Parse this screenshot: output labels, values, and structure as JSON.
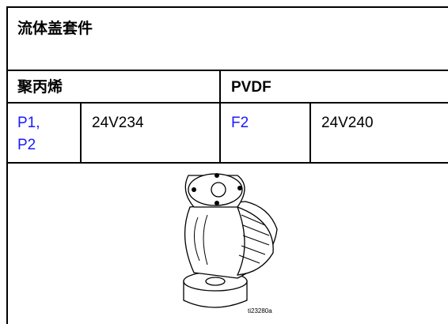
{
  "title": "流体盖套件",
  "table": {
    "header": [
      "聚丙烯",
      "PVDF"
    ],
    "rows": [
      [
        [
          "P1,",
          "P2"
        ],
        "24V234",
        "F2",
        "24V240"
      ]
    ]
  },
  "figure": {
    "caption": "ti23280a"
  }
}
